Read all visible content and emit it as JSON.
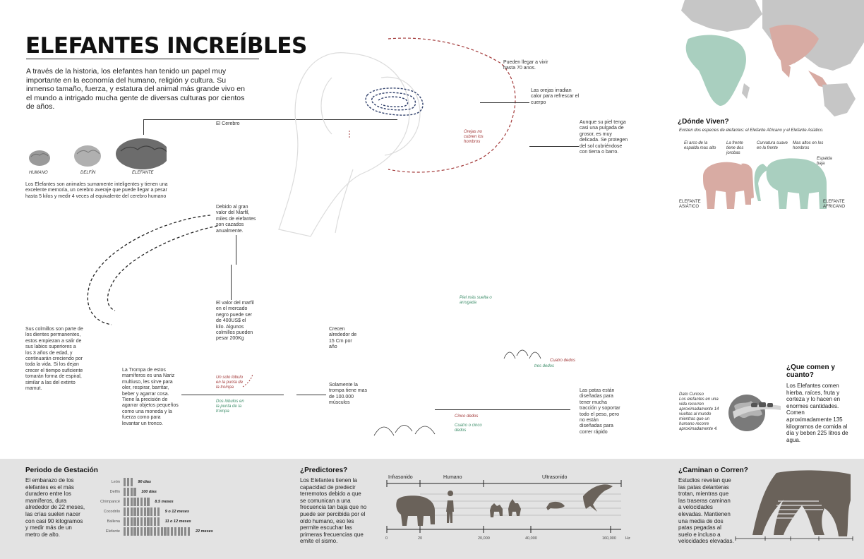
{
  "title": "ELEFANTES INCREÍBLES",
  "intro": "A través de la historia, los elefantes han tenido un papel muy importante en la economía del humano, religión y cultura. Su inmenso tamaño, fuerza, y estatura del animal más grande vivo en el mundo a intrigado mucha gente de diversas culturas por cientos de años.",
  "brain": {
    "label": "El Cerebro",
    "human": "HUMANO",
    "dolphin": "DELFÍN",
    "elephant": "ELEFANTE",
    "text": "Los Elefantes son animales sumamente inteligentes y tienen una excelente memoria, un cerebro averaje que puede llegar a pesar hasta 5 kilos y medir 4 veces al equivalente del cerebro humano"
  },
  "head_notes": {
    "lifespan": "Pueden llegar a vivir hasta 70 anos.",
    "ears": "Las orejas irradian calor para refrescar el cuerpo",
    "skin": "Aunque su piel tenga casi una pulgada de grosor, es muy delicada. Se protegen del sol cubriéndose con tierra o barro.",
    "ears_cover": "Orejas no cubren los hombros",
    "ivory_value": "Debido al gran valor del Marfil, miles de elefantes son cazados anualmente.",
    "ivory_price": "El valor del marfil en el mercado negro puede ser de 400US$ el kilo. Algunos colmillos pueden pesar 200Kg",
    "growth": "Crecen alrededor de 15 Cm por año",
    "tusks": "Sus colmillos son parte de los dientes permanentes, estos empiezan a salir de sus labios superiores a los 3 años de edad, y continuarán creciendo por toda la vida. Si los dejan crecer el tiempo suficiente tomarán forma de espiral, similar a las del extinto mamut.",
    "trunk": "La Trompa de estos mamíferos es una Nariz multiuso, les sirve para oler, respirar, barritar, beber y agarrar cosa. Tiene la precisión de agarrar objetos pequeños como una moneda y la fuerza como para levantar un tronco.",
    "one_lobe": "Un solo lóbulo en la punta de la trompa",
    "two_lobes": "Dos lóbulos en la punta de la trompa",
    "muscles": "Solamente la trompa tiene mas de 100.000 músculos",
    "loose_skin": "Piel más suelta o arrugada",
    "four_toes": "Cuatro dedos",
    "three_toes": "tres dedos",
    "five_toes": "Cinco dedos",
    "four_five_toes": "Cuatro o cinco dedos",
    "legs": "Las patas están diseñadas para tener mucha tracción y soportar todo el peso, pero no están diseñadas para correr rápido"
  },
  "where": {
    "heading": "¿Dónde Viven?",
    "subtitle": "Existen dos especies de elefantes: el Elefante Africano y el Elefante Asiático.",
    "asian_back": "El arco de la espalda mas alto",
    "asian_head": "La frente tiene dos jorobas",
    "african_head": "Curvatura suave en la frente",
    "african_back": "Mas altos en los hombros",
    "african_low": "Espalda baja",
    "asian_label": "ELEFANTE ASIÁTICO",
    "african_label": "ELEFANTE AFRICANO"
  },
  "diet": {
    "heading": "¿Que comen y cuanto?",
    "text": "Los Elefantes comen hierba, raíces, fruta y corteza y lo hacen en enormes cantidades. Comen aproximadamente 135 kilogramos de comida al día y beben 225 litros de agua.",
    "fact_title": "Dato Curioso",
    "fact_text": "Los elefantes en una vida recorren aproximadamente 14 vueltas al mundo mientras que un humano recorre aproximadamente 4."
  },
  "gestation": {
    "heading": "Periodo de Gestación",
    "text": "El embarazo de los elefantes es el más duradero entre los mamíferos, dura alrededor de 22 meses, las crías suelen nacer con casi 90 kilogramos y medir más de un metro de alto.",
    "rows": [
      {
        "animal": "León",
        "value": "90 días",
        "bars": 3
      },
      {
        "animal": "Delfín",
        "value": "100 días",
        "bars": 4
      },
      {
        "animal": "Chimpancé",
        "value": "8.5 meses",
        "bars": 8
      },
      {
        "animal": "Cocodrilo",
        "value": "9 o 12 meses",
        "bars": 11
      },
      {
        "animal": "Ballena",
        "value": "11 o 12 meses",
        "bars": 11
      },
      {
        "animal": "Elefante",
        "value": "22 meses",
        "bars": 20
      }
    ]
  },
  "predictors": {
    "heading": "¿Predictores?",
    "text": "Los Elefantes tienen la capacidad de predecir terremotos debido a que se comunican a una frecuencia tan baja que no puede ser percibida por el oído humano, eso les permite escuchar las primeras frecuencias que emite el sismo.",
    "band_infra": "Infrasonido",
    "band_human": "Humano",
    "band_ultra": "Ultrasonido",
    "ticks": [
      "0",
      "20",
      "20,000",
      "40,000",
      "160,000"
    ],
    "unit": "Hz"
  },
  "walk": {
    "heading": "¿Caminan o Corren?",
    "text": "Estudios revelan que las patas delanteras trotan, mientras que las traseras caminan a velocidades elevadas. Mantienen una media de dos patas pegadas al suelo e incluso a velocidades elevadas."
  },
  "colors": {
    "asia": "#d8aba3",
    "africa": "#a9cfbf",
    "land": "#c6c6c6",
    "band": "#e3e3e3",
    "dark": "#6a625a",
    "accent_red": "#a33a3a"
  }
}
